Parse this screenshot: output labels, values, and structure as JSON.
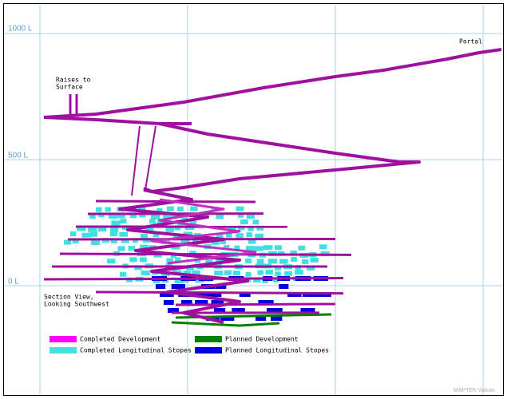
{
  "levels": {
    "top": "1000 L",
    "middle": "500 L",
    "bottom": "0 L"
  },
  "annotations": {
    "portal": "Portal",
    "raises": [
      "Raises to",
      "Surface"
    ],
    "view": [
      "Section View,",
      "Looking Southwest"
    ]
  },
  "legend": [
    "Completed Development",
    "Planned Development",
    "Completed Longitudinal Stopes",
    "Planned Longitudinal Stopes"
  ],
  "watermark": "MAPTEK Vulcan"
}
